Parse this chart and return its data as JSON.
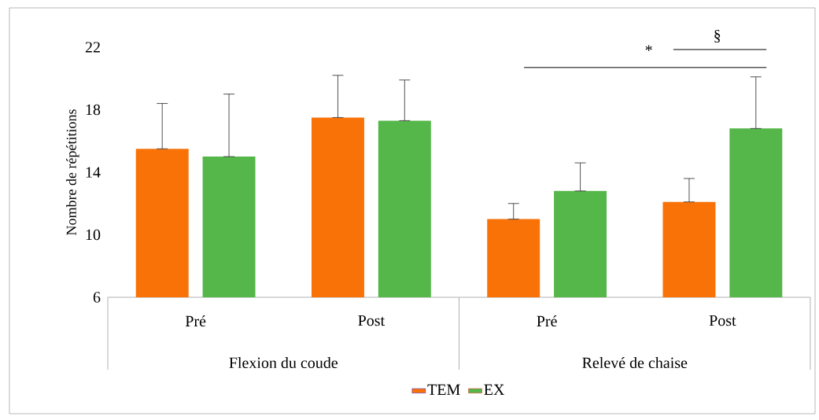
{
  "chart_data": {
    "type": "bar",
    "ylabel": "Nombre de répétitions",
    "categories": [
      "Pré",
      "Post",
      "Pré",
      "Post"
    ],
    "series": [
      {
        "name": "TEM",
        "color": "#f97208",
        "values": [
          15.5,
          17.5,
          11.0,
          12.1
        ],
        "errors": [
          [
            15.5,
            18.4
          ],
          [
            17.5,
            20.2
          ],
          [
            11.0,
            12.0
          ],
          [
            12.1,
            13.6
          ]
        ]
      },
      {
        "name": "EX",
        "color": "#55b649",
        "values": [
          15.0,
          17.3,
          12.8,
          16.8
        ],
        "errors": [
          [
            15.0,
            19.0
          ],
          [
            17.3,
            19.9
          ],
          [
            12.8,
            14.6
          ],
          [
            16.8,
            20.1
          ]
        ]
      }
    ],
    "ylim": [
      6,
      22
    ],
    "yticks": [
      6,
      10,
      14,
      18,
      22
    ],
    "grid": false,
    "legend": "bottom",
    "annotations": [
      "Flexion du coude",
      "Relevé de chaise",
      "*",
      "§"
    ]
  }
}
